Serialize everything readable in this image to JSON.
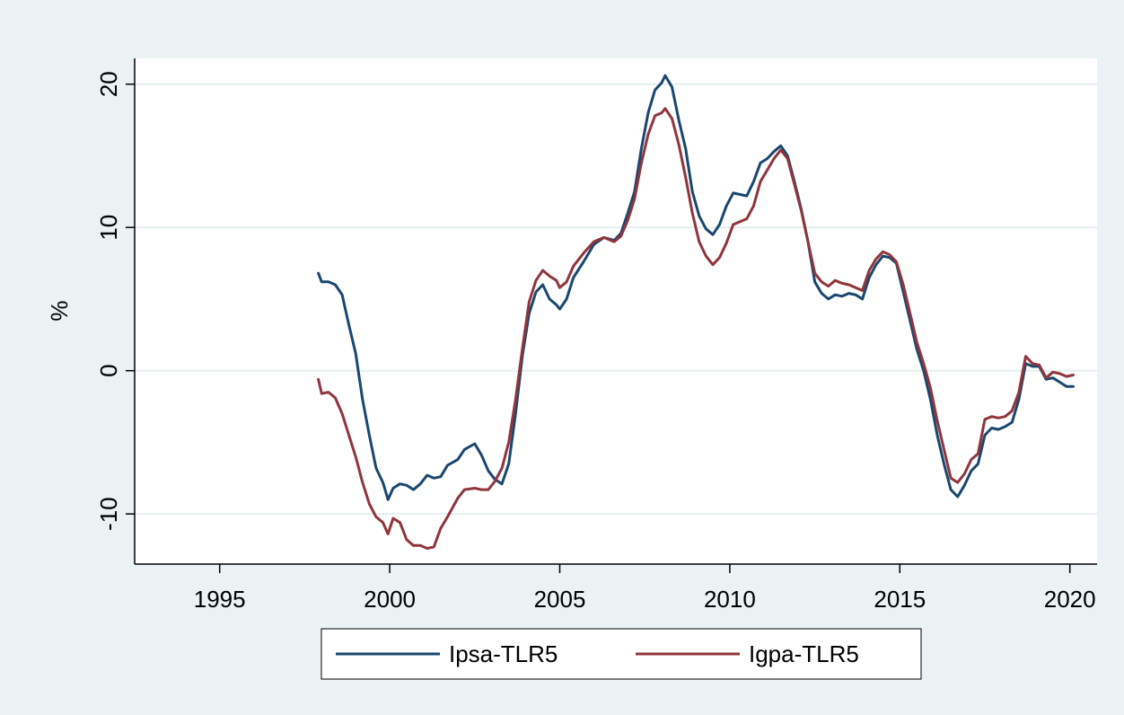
{
  "chart_data": {
    "type": "line",
    "title": "",
    "xlabel": "",
    "ylabel": "%",
    "xlim": [
      1992.5,
      2020.8
    ],
    "ylim": [
      -13.5,
      21.8
    ],
    "x_ticks": [
      1995,
      2000,
      2005,
      2010,
      2015,
      2020
    ],
    "x_tick_labels": [
      "1995",
      "2000",
      "2005",
      "2010",
      "2015",
      "2020"
    ],
    "y_ticks": [
      -10,
      0,
      10,
      20
    ],
    "y_tick_labels": [
      "-10",
      "0",
      "10",
      "20"
    ],
    "grid": "horizontal",
    "legend_position": "bottom",
    "series": [
      {
        "name": "Ipsa-TLR5",
        "color": "#1a476f",
        "points": [
          [
            1997.9,
            6.8
          ],
          [
            1998.0,
            6.2
          ],
          [
            1998.2,
            6.2
          ],
          [
            1998.4,
            6.0
          ],
          [
            1998.6,
            5.3
          ],
          [
            1998.8,
            3.2
          ],
          [
            1999.0,
            1.2
          ],
          [
            1999.2,
            -2.0
          ],
          [
            1999.4,
            -4.5
          ],
          [
            1999.6,
            -6.8
          ],
          [
            1999.8,
            -7.8
          ],
          [
            1999.95,
            -9.0
          ],
          [
            2000.1,
            -8.2
          ],
          [
            2000.3,
            -7.9
          ],
          [
            2000.5,
            -8.0
          ],
          [
            2000.7,
            -8.3
          ],
          [
            2000.9,
            -7.9
          ],
          [
            2001.1,
            -7.3
          ],
          [
            2001.3,
            -7.5
          ],
          [
            2001.5,
            -7.4
          ],
          [
            2001.7,
            -6.6
          ],
          [
            2002.0,
            -6.2
          ],
          [
            2002.2,
            -5.5
          ],
          [
            2002.5,
            -5.1
          ],
          [
            2002.7,
            -5.9
          ],
          [
            2002.9,
            -7.0
          ],
          [
            2003.1,
            -7.6
          ],
          [
            2003.3,
            -7.9
          ],
          [
            2003.5,
            -6.5
          ],
          [
            2003.7,
            -3.0
          ],
          [
            2003.9,
            1.0
          ],
          [
            2004.1,
            4.0
          ],
          [
            2004.3,
            5.5
          ],
          [
            2004.5,
            6.0
          ],
          [
            2004.7,
            5.0
          ],
          [
            2004.9,
            4.6
          ],
          [
            2005.0,
            4.3
          ],
          [
            2005.2,
            5.0
          ],
          [
            2005.4,
            6.5
          ],
          [
            2005.7,
            7.6
          ],
          [
            2006.0,
            8.8
          ],
          [
            2006.3,
            9.3
          ],
          [
            2006.6,
            9.1
          ],
          [
            2006.8,
            9.6
          ],
          [
            2007.0,
            11.0
          ],
          [
            2007.2,
            12.5
          ],
          [
            2007.4,
            15.5
          ],
          [
            2007.6,
            18.0
          ],
          [
            2007.8,
            19.6
          ],
          [
            2008.0,
            20.1
          ],
          [
            2008.1,
            20.6
          ],
          [
            2008.3,
            19.8
          ],
          [
            2008.5,
            17.5
          ],
          [
            2008.7,
            15.5
          ],
          [
            2008.9,
            12.5
          ],
          [
            2009.1,
            10.8
          ],
          [
            2009.3,
            9.9
          ],
          [
            2009.5,
            9.5
          ],
          [
            2009.7,
            10.2
          ],
          [
            2009.9,
            11.5
          ],
          [
            2010.1,
            12.4
          ],
          [
            2010.3,
            12.3
          ],
          [
            2010.5,
            12.2
          ],
          [
            2010.7,
            13.2
          ],
          [
            2010.9,
            14.5
          ],
          [
            2011.1,
            14.8
          ],
          [
            2011.3,
            15.3
          ],
          [
            2011.5,
            15.7
          ],
          [
            2011.7,
            15.0
          ],
          [
            2011.9,
            13.2
          ],
          [
            2012.1,
            11.3
          ],
          [
            2012.3,
            9.0
          ],
          [
            2012.5,
            6.2
          ],
          [
            2012.7,
            5.4
          ],
          [
            2012.9,
            5.0
          ],
          [
            2013.1,
            5.3
          ],
          [
            2013.3,
            5.2
          ],
          [
            2013.5,
            5.4
          ],
          [
            2013.7,
            5.3
          ],
          [
            2013.9,
            5.0
          ],
          [
            2014.1,
            6.5
          ],
          [
            2014.3,
            7.4
          ],
          [
            2014.5,
            8.0
          ],
          [
            2014.7,
            7.9
          ],
          [
            2014.9,
            7.5
          ],
          [
            2015.1,
            5.5
          ],
          [
            2015.3,
            3.5
          ],
          [
            2015.5,
            1.5
          ],
          [
            2015.7,
            0.0
          ],
          [
            2015.9,
            -2.0
          ],
          [
            2016.1,
            -4.5
          ],
          [
            2016.3,
            -6.5
          ],
          [
            2016.5,
            -8.3
          ],
          [
            2016.7,
            -8.8
          ],
          [
            2016.9,
            -8.0
          ],
          [
            2017.1,
            -7.0
          ],
          [
            2017.3,
            -6.5
          ],
          [
            2017.5,
            -4.5
          ],
          [
            2017.7,
            -4.0
          ],
          [
            2017.9,
            -4.1
          ],
          [
            2018.1,
            -3.9
          ],
          [
            2018.3,
            -3.6
          ],
          [
            2018.5,
            -2.0
          ],
          [
            2018.7,
            0.5
          ],
          [
            2018.9,
            0.3
          ],
          [
            2019.1,
            0.3
          ],
          [
            2019.3,
            -0.6
          ],
          [
            2019.5,
            -0.5
          ],
          [
            2019.7,
            -0.8
          ],
          [
            2019.9,
            -1.1
          ],
          [
            2020.1,
            -1.1
          ]
        ]
      },
      {
        "name": "Igpa-TLR5",
        "color": "#90353b",
        "points": [
          [
            1997.9,
            -0.6
          ],
          [
            1998.0,
            -1.6
          ],
          [
            1998.2,
            -1.5
          ],
          [
            1998.4,
            -1.9
          ],
          [
            1998.6,
            -3.0
          ],
          [
            1998.8,
            -4.5
          ],
          [
            1999.0,
            -6.0
          ],
          [
            1999.2,
            -7.8
          ],
          [
            1999.4,
            -9.3
          ],
          [
            1999.6,
            -10.2
          ],
          [
            1999.8,
            -10.6
          ],
          [
            1999.95,
            -11.4
          ],
          [
            2000.1,
            -10.3
          ],
          [
            2000.3,
            -10.6
          ],
          [
            2000.5,
            -11.8
          ],
          [
            2000.7,
            -12.2
          ],
          [
            2000.9,
            -12.2
          ],
          [
            2001.1,
            -12.4
          ],
          [
            2001.3,
            -12.3
          ],
          [
            2001.5,
            -11.0
          ],
          [
            2001.7,
            -10.2
          ],
          [
            2002.0,
            -8.9
          ],
          [
            2002.2,
            -8.3
          ],
          [
            2002.5,
            -8.2
          ],
          [
            2002.7,
            -8.3
          ],
          [
            2002.9,
            -8.3
          ],
          [
            2003.1,
            -7.7
          ],
          [
            2003.3,
            -6.8
          ],
          [
            2003.5,
            -5.0
          ],
          [
            2003.7,
            -2.0
          ],
          [
            2003.9,
            1.5
          ],
          [
            2004.1,
            4.8
          ],
          [
            2004.3,
            6.3
          ],
          [
            2004.5,
            7.0
          ],
          [
            2004.7,
            6.6
          ],
          [
            2004.9,
            6.3
          ],
          [
            2005.0,
            5.8
          ],
          [
            2005.2,
            6.2
          ],
          [
            2005.4,
            7.3
          ],
          [
            2005.7,
            8.2
          ],
          [
            2006.0,
            9.0
          ],
          [
            2006.3,
            9.3
          ],
          [
            2006.6,
            9.0
          ],
          [
            2006.8,
            9.4
          ],
          [
            2007.0,
            10.5
          ],
          [
            2007.2,
            12.0
          ],
          [
            2007.4,
            14.5
          ],
          [
            2007.6,
            16.5
          ],
          [
            2007.8,
            17.8
          ],
          [
            2008.0,
            18.0
          ],
          [
            2008.1,
            18.3
          ],
          [
            2008.3,
            17.6
          ],
          [
            2008.5,
            15.8
          ],
          [
            2008.7,
            13.5
          ],
          [
            2008.9,
            11.0
          ],
          [
            2009.1,
            9.0
          ],
          [
            2009.3,
            8.0
          ],
          [
            2009.5,
            7.4
          ],
          [
            2009.7,
            7.9
          ],
          [
            2009.9,
            8.9
          ],
          [
            2010.1,
            10.2
          ],
          [
            2010.3,
            10.4
          ],
          [
            2010.5,
            10.6
          ],
          [
            2010.7,
            11.5
          ],
          [
            2010.9,
            13.2
          ],
          [
            2011.1,
            14.0
          ],
          [
            2011.3,
            14.8
          ],
          [
            2011.5,
            15.4
          ],
          [
            2011.7,
            14.8
          ],
          [
            2011.9,
            13.0
          ],
          [
            2012.1,
            11.2
          ],
          [
            2012.3,
            9.0
          ],
          [
            2012.5,
            6.8
          ],
          [
            2012.7,
            6.2
          ],
          [
            2012.9,
            5.9
          ],
          [
            2013.1,
            6.3
          ],
          [
            2013.3,
            6.1
          ],
          [
            2013.5,
            6.0
          ],
          [
            2013.7,
            5.8
          ],
          [
            2013.9,
            5.6
          ],
          [
            2014.1,
            7.0
          ],
          [
            2014.3,
            7.8
          ],
          [
            2014.5,
            8.3
          ],
          [
            2014.7,
            8.1
          ],
          [
            2014.9,
            7.6
          ],
          [
            2015.1,
            6.0
          ],
          [
            2015.3,
            4.0
          ],
          [
            2015.5,
            2.0
          ],
          [
            2015.7,
            0.5
          ],
          [
            2015.9,
            -1.2
          ],
          [
            2016.1,
            -3.5
          ],
          [
            2016.3,
            -5.5
          ],
          [
            2016.5,
            -7.5
          ],
          [
            2016.7,
            -7.8
          ],
          [
            2016.9,
            -7.2
          ],
          [
            2017.1,
            -6.2
          ],
          [
            2017.3,
            -5.8
          ],
          [
            2017.5,
            -3.4
          ],
          [
            2017.7,
            -3.2
          ],
          [
            2017.9,
            -3.3
          ],
          [
            2018.1,
            -3.2
          ],
          [
            2018.3,
            -2.8
          ],
          [
            2018.5,
            -1.5
          ],
          [
            2018.7,
            1.0
          ],
          [
            2018.9,
            0.5
          ],
          [
            2019.1,
            0.4
          ],
          [
            2019.3,
            -0.5
          ],
          [
            2019.5,
            -0.1
          ],
          [
            2019.7,
            -0.2
          ],
          [
            2019.9,
            -0.4
          ],
          [
            2020.1,
            -0.3
          ]
        ]
      }
    ]
  }
}
